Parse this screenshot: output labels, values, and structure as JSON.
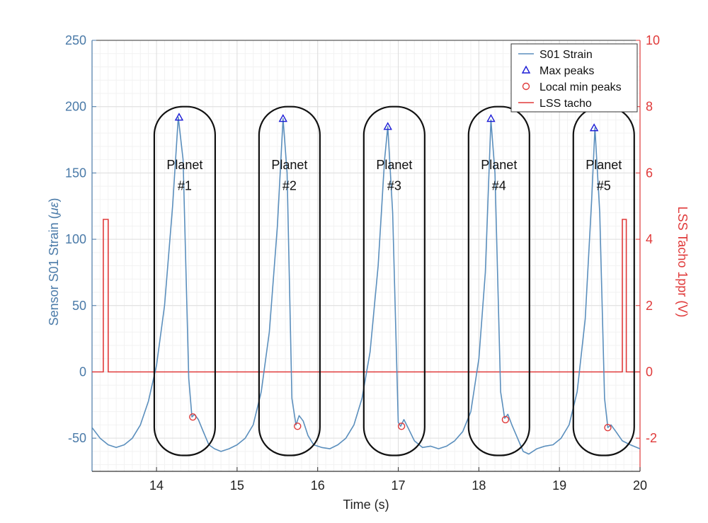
{
  "chart_data": {
    "type": "line",
    "xlabel": "Time (s)",
    "ylabel_left": "Sensor S01 Strain (",
    "ylabel_left_unit": "με",
    "ylabel_left_close": ")",
    "ylabel_right": "LSS Tacho 1ppr (V)",
    "xlim": [
      13.2,
      20.0
    ],
    "ylim_left": [
      -75,
      250
    ],
    "ylim_right": [
      -3,
      10
    ],
    "xticks": [
      "14",
      "15",
      "16",
      "17",
      "18",
      "19",
      "20"
    ],
    "yticks_left": [
      "-50",
      "0",
      "50",
      "100",
      "150",
      "200",
      "250"
    ],
    "yticks_right": [
      "-2",
      "0",
      "2",
      "4",
      "6",
      "8",
      "10"
    ],
    "grid": true,
    "legend_position": "top-right",
    "colors": {
      "strain": "#5b8fbd",
      "tacho": "#e03a3a",
      "max_peak": "#1a1ad6",
      "min_peak": "#e03a3a",
      "left_axis": "#4a7aa8",
      "right_axis": "#e03a3a"
    },
    "legend": [
      "S01 Strain",
      "Max peaks",
      "Local min peaks",
      "LSS tacho"
    ],
    "series": [
      {
        "name": "S01 Strain",
        "axis": "left",
        "x": [
          13.2,
          13.3,
          13.4,
          13.5,
          13.6,
          13.7,
          13.8,
          13.9,
          14.0,
          14.1,
          14.2,
          14.27,
          14.33,
          14.4,
          14.44,
          14.47,
          14.52,
          14.58,
          14.65,
          14.72,
          14.8,
          14.9,
          15.0,
          15.1,
          15.2,
          15.3,
          15.4,
          15.5,
          15.57,
          15.62,
          15.68,
          15.73,
          15.77,
          15.82,
          15.88,
          15.95,
          16.05,
          16.15,
          16.25,
          16.35,
          16.45,
          16.55,
          16.65,
          16.75,
          16.83,
          16.87,
          16.93,
          17.0,
          17.03,
          17.07,
          17.12,
          17.2,
          17.3,
          17.4,
          17.5,
          17.6,
          17.7,
          17.8,
          17.9,
          18.0,
          18.08,
          18.15,
          18.2,
          18.27,
          18.32,
          18.36,
          18.41,
          18.48,
          18.55,
          18.62,
          18.72,
          18.82,
          18.92,
          19.02,
          19.12,
          19.22,
          19.32,
          19.4,
          19.44,
          19.5,
          19.56,
          19.6,
          19.64,
          19.7,
          19.78,
          19.88,
          20.0
        ],
        "y": [
          -42,
          -50,
          -55,
          -57,
          -55,
          -50,
          -40,
          -22,
          5,
          50,
          125,
          192,
          160,
          -5,
          -34,
          -32,
          -36,
          -45,
          -55,
          -58,
          -60,
          -58,
          -55,
          -50,
          -40,
          -15,
          30,
          110,
          191,
          150,
          -20,
          -40,
          -33,
          -37,
          -48,
          -55,
          -57,
          -58,
          -55,
          -50,
          -40,
          -20,
          15,
          80,
          160,
          185,
          120,
          -38,
          -41,
          -36,
          -42,
          -52,
          -57,
          -56,
          -58,
          -56,
          -52,
          -45,
          -30,
          10,
          75,
          190,
          150,
          -15,
          -35,
          -32,
          -40,
          -50,
          -60,
          -62,
          -58,
          -56,
          -55,
          -50,
          -40,
          -15,
          40,
          130,
          184,
          120,
          -20,
          -42,
          -40,
          -45,
          -52,
          -55,
          -58
        ]
      },
      {
        "name": "Max peaks",
        "axis": "left",
        "x": [
          14.28,
          15.57,
          16.87,
          18.15,
          19.43
        ],
        "y": [
          192,
          191,
          185,
          191,
          184
        ]
      },
      {
        "name": "Local min peaks",
        "axis": "left",
        "x": [
          14.45,
          15.75,
          17.04,
          18.33,
          19.6
        ],
        "y": [
          -34,
          -41,
          -41,
          -36,
          -42
        ]
      },
      {
        "name": "LSS tacho",
        "axis": "right",
        "x": [
          13.2,
          13.34,
          13.34,
          13.4,
          13.4,
          19.78,
          19.78,
          19.83,
          19.83,
          20.0
        ],
        "y": [
          0,
          0,
          4.6,
          4.6,
          0,
          0,
          4.6,
          4.6,
          0,
          0
        ]
      }
    ],
    "annotations": [
      {
        "line1": "Planet",
        "line2": "#1",
        "x_center": 14.35,
        "y_top": 200,
        "y_bottom": -63
      },
      {
        "line1": "Planet",
        "line2": "#2",
        "x_center": 15.65,
        "y_top": 200,
        "y_bottom": -63
      },
      {
        "line1": "Planet",
        "line2": "#3",
        "x_center": 16.95,
        "y_top": 200,
        "y_bottom": -63
      },
      {
        "line1": "Planet",
        "line2": "#4",
        "x_center": 18.25,
        "y_top": 200,
        "y_bottom": -63
      },
      {
        "line1": "Planet",
        "line2": "#5",
        "x_center": 19.55,
        "y_top": 200,
        "y_bottom": -63
      }
    ]
  }
}
